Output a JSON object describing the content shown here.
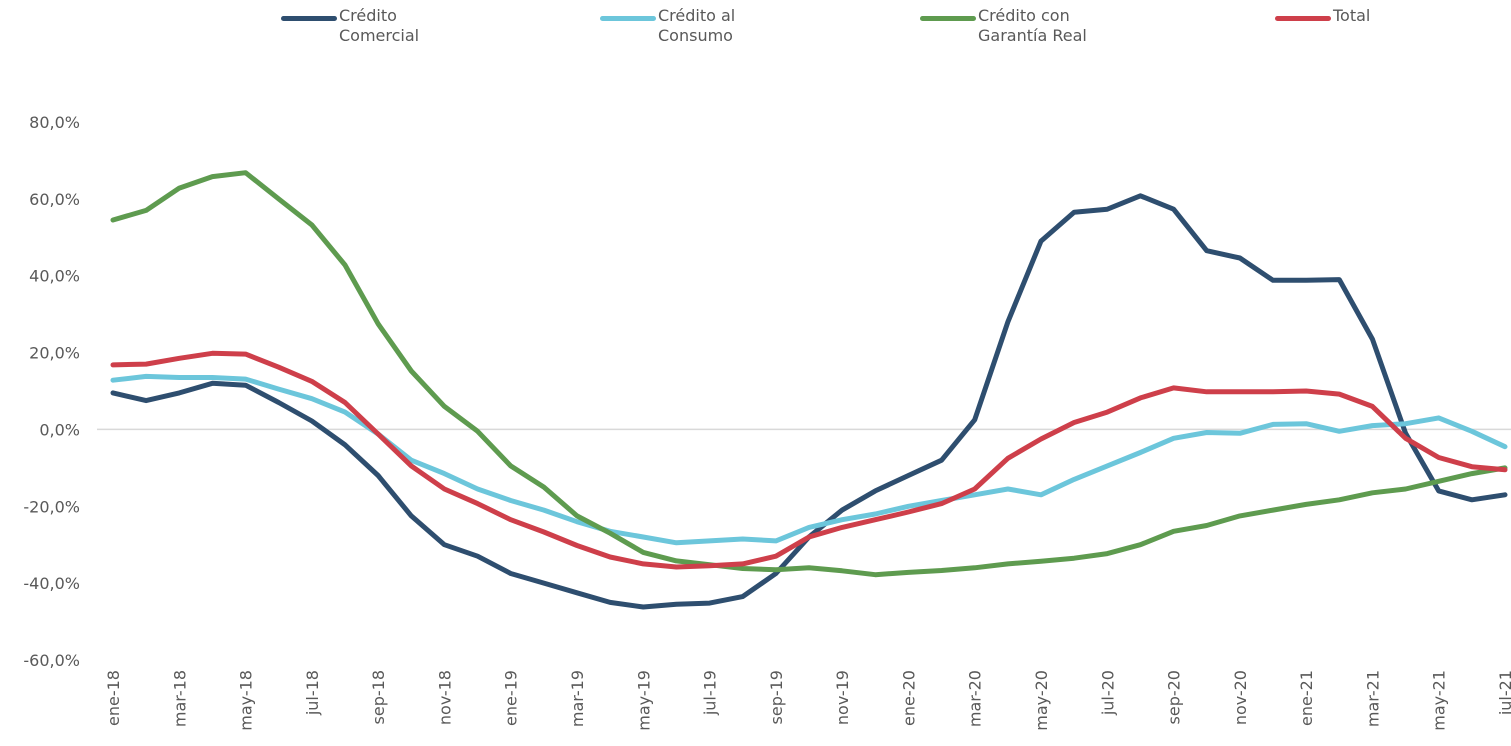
{
  "chart_data": {
    "type": "line",
    "title": "",
    "xlabel": "",
    "ylabel": "",
    "ylim": [
      -60,
      80
    ],
    "y_ticks": [
      80,
      60,
      40,
      20,
      0,
      -20,
      -40,
      -60
    ],
    "y_tick_labels": [
      "80,0%",
      "60,0%",
      "40,0%",
      "20,0%",
      "0,0%",
      "-20,0%",
      "-40,0%",
      "-60,0%"
    ],
    "zero_line": true,
    "grid": false,
    "legend_position": "top",
    "categories": [
      "ene-18",
      "feb-18",
      "mar-18",
      "abr-18",
      "may-18",
      "jun-18",
      "jul-18",
      "ago-18",
      "sep-18",
      "oct-18",
      "nov-18",
      "dic-18",
      "ene-19",
      "feb-19",
      "mar-19",
      "abr-19",
      "may-19",
      "jun-19",
      "jul-19",
      "ago-19",
      "sep-19",
      "oct-19",
      "nov-19",
      "dic-19",
      "ene-20",
      "feb-20",
      "mar-20",
      "abr-20",
      "may-20",
      "jun-20",
      "jul-20",
      "ago-20",
      "sep-20",
      "oct-20",
      "nov-20",
      "dic-20",
      "ene-21",
      "feb-21",
      "mar-21",
      "abr-21",
      "may-21",
      "jun-21",
      "jul-21"
    ],
    "x_tick_labels": [
      "ene-18",
      "mar-18",
      "may-18",
      "jul-18",
      "sep-18",
      "nov-18",
      "ene-19",
      "mar-19",
      "may-19",
      "jul-19",
      "sep-19",
      "nov-19",
      "ene-20",
      "mar-20",
      "may-20",
      "jul-20",
      "sep-20",
      "nov-20",
      "ene-21",
      "mar-21",
      "may-21",
      "jul-21"
    ],
    "series": [
      {
        "name": "Crédito\nComercial",
        "color": "#2E4E6F",
        "values": [
          9.5,
          7.5,
          9.5,
          12.0,
          11.5,
          7.0,
          2.2,
          -4.0,
          -12.0,
          -22.5,
          -30.0,
          -33.0,
          -37.5,
          -40.0,
          -42.5,
          -45.0,
          -46.2,
          -45.5,
          -45.2,
          -43.5,
          -37.5,
          -28.0,
          -21.0,
          -16.0,
          -12.0,
          -8.0,
          2.5,
          28.0,
          49.0,
          56.5,
          57.3,
          60.8,
          57.3,
          46.5,
          44.6,
          38.8,
          38.8,
          39.0,
          23.5,
          -1.0,
          -16.0,
          -18.3,
          -17.0
        ]
      },
      {
        "name": "Crédito al\nConsumo",
        "color": "#6CC6DB",
        "values": [
          12.8,
          13.8,
          13.5,
          13.5,
          13.1,
          10.5,
          8.0,
          4.5,
          -1.2,
          -8.0,
          -11.5,
          -15.5,
          -18.5,
          -21.0,
          -24.0,
          -26.5,
          -28.0,
          -29.5,
          -29.0,
          -28.5,
          -29.0,
          -25.5,
          -23.5,
          -22.0,
          -20.0,
          -18.5,
          -17.0,
          -15.5,
          -17.0,
          -13.0,
          -9.5,
          -6.0,
          -2.3,
          -0.8,
          -1.0,
          1.3,
          1.5,
          -0.5,
          1.0,
          1.5,
          3.0,
          -0.5,
          -4.5
        ]
      },
      {
        "name": "Crédito con\nGarantía Real",
        "color": "#5E9B4F",
        "values": [
          54.5,
          57.0,
          62.8,
          65.8,
          66.8,
          60.0,
          53.2,
          42.8,
          27.5,
          15.2,
          6.0,
          -0.5,
          -9.5,
          -15.0,
          -22.5,
          -27.0,
          -32.0,
          -34.2,
          -35.2,
          -36.2,
          -36.5,
          -36.0,
          -36.8,
          -37.8,
          -37.2,
          -36.7,
          -36.0,
          -35.0,
          -34.3,
          -33.5,
          -32.3,
          -30.0,
          -26.5,
          -25.0,
          -22.5,
          -21.0,
          -19.5,
          -18.3,
          -16.5,
          -15.5,
          -13.5,
          -11.5,
          -10.0
        ]
      },
      {
        "name": "Total",
        "color": "#CE3F4A",
        "values": [
          16.8,
          17.0,
          18.5,
          19.8,
          19.6,
          16.2,
          12.5,
          7.0,
          -1.2,
          -9.5,
          -15.5,
          -19.3,
          -23.5,
          -26.7,
          -30.2,
          -33.2,
          -35.0,
          -35.8,
          -35.5,
          -35.0,
          -33.0,
          -28.0,
          -25.5,
          -23.5,
          -21.5,
          -19.3,
          -15.5,
          -7.5,
          -2.5,
          1.8,
          4.5,
          8.2,
          10.8,
          9.8,
          9.8,
          9.8,
          10.0,
          9.2,
          6.0,
          -2.3,
          -7.3,
          -9.7,
          -10.5
        ]
      }
    ]
  }
}
